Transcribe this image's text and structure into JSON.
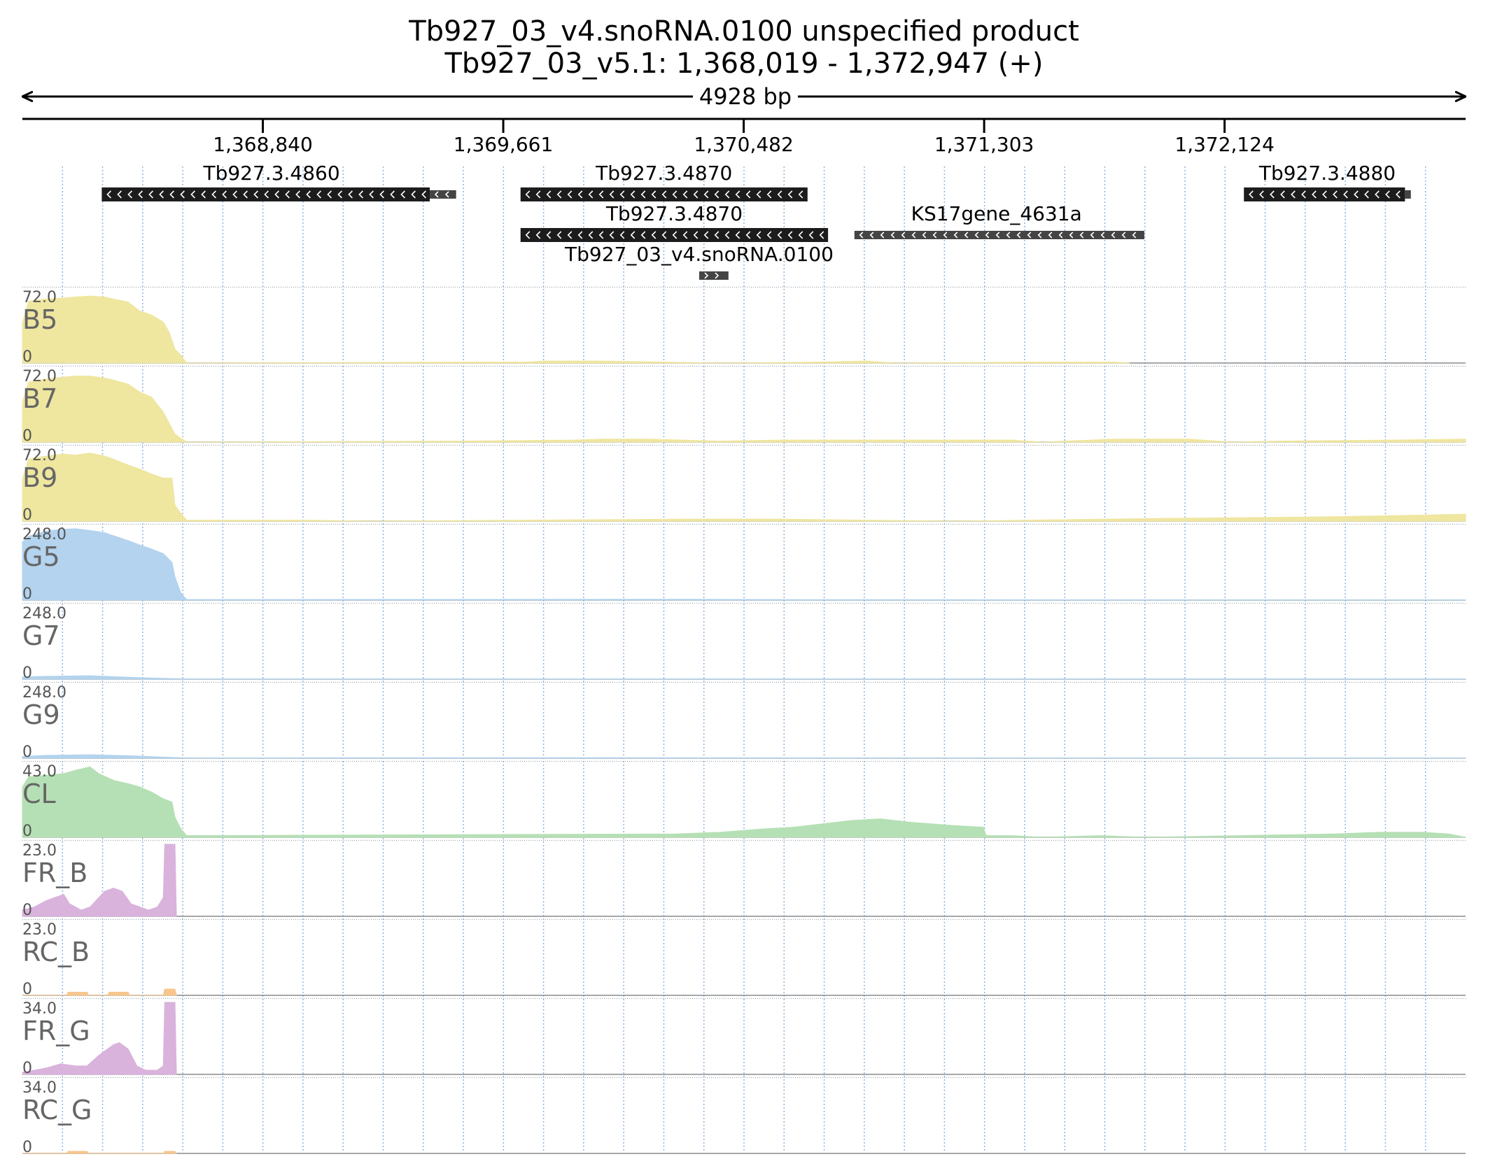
{
  "header": {
    "title": "Tb927_03_v4.snoRNA.0100  unspecified product",
    "subtitle": "Tb927_03_v5.1: 1,368,019 - 1,372,947 (+)",
    "span_label": "4928 bp"
  },
  "colors": {
    "yellow": "#efe6a0",
    "blue": "#b3d3ee",
    "green": "#b5e0b5",
    "purple": "#d9b3dc",
    "orange": "#f7c68c",
    "gene": "#1c1c1c",
    "gene_gray": "#444444",
    "grid": "#8fb6dd"
  },
  "chart_data": {
    "type": "area",
    "title": "Tb927_03_v4.snoRNA.0100  unspecified product",
    "region": {
      "chrom": "Tb927_03_v5.1",
      "start": 1368019,
      "end": 1372947,
      "strand": "+"
    },
    "x_ticks": [
      {
        "pos": 1368840,
        "label": "1,368,840"
      },
      {
        "pos": 1369661,
        "label": "1,369,661"
      },
      {
        "pos": 1370482,
        "label": "1,370,482"
      },
      {
        "pos": 1371303,
        "label": "1,371,303"
      },
      {
        "pos": 1372124,
        "label": "1,372,124"
      }
    ],
    "genes": [
      {
        "name": "Tb927.3.4860",
        "start": 1368290,
        "end": 1369500,
        "strand": "-",
        "row": 0,
        "color": "black",
        "label_pos": 1368870,
        "segments": [
          [
            1368290,
            1369410,
            "thick"
          ],
          [
            1369410,
            1369500,
            "thin"
          ]
        ]
      },
      {
        "name": "Tb927.3.4870",
        "start": 1369720,
        "end": 1370700,
        "strand": "-",
        "row": 0,
        "color": "black",
        "label_pos": 1370210,
        "segments": [
          [
            1369720,
            1370700,
            "thick"
          ]
        ]
      },
      {
        "name": "Tb927.3.4880",
        "start": 1372190,
        "end": 1372760,
        "strand": "-",
        "row": 0,
        "color": "black",
        "label_pos": 1372475,
        "segments": [
          [
            1372190,
            1372740,
            "thick"
          ],
          [
            1372740,
            1372760,
            "thin"
          ]
        ]
      },
      {
        "name": "Tb927.3.4870",
        "start": 1369720,
        "end": 1370770,
        "strand": "-",
        "row": 1,
        "color": "black",
        "label_pos": 1370245,
        "segments": [
          [
            1369720,
            1370770,
            "thick"
          ]
        ]
      },
      {
        "name": "KS17gene_4631a",
        "start": 1370860,
        "end": 1371850,
        "strand": "-",
        "row": 1,
        "color": "gray",
        "label_pos": 1371345,
        "segments": [
          [
            1370860,
            1371850,
            "thin"
          ]
        ]
      },
      {
        "name": "Tb927_03_v4.snoRNA.0100",
        "start": 1370330,
        "end": 1370430,
        "strand": "+",
        "row": 2,
        "color": "gray",
        "label_pos": 1370330,
        "segments": [
          [
            1370330,
            1370430,
            "thin"
          ]
        ]
      }
    ],
    "tracks": [
      {
        "name": "B5",
        "max": 72.0,
        "max_label": "72.0",
        "min_label": "0",
        "color": "yellow",
        "points": [
          [
            1368019,
            40
          ],
          [
            1368040,
            62
          ],
          [
            1368100,
            64
          ],
          [
            1368160,
            65
          ],
          [
            1368200,
            66
          ],
          [
            1368250,
            67
          ],
          [
            1368300,
            66
          ],
          [
            1368330,
            64
          ],
          [
            1368380,
            61
          ],
          [
            1368420,
            52
          ],
          [
            1368460,
            48
          ],
          [
            1368500,
            41
          ],
          [
            1368520,
            31
          ],
          [
            1368540,
            14
          ],
          [
            1368560,
            8
          ],
          [
            1368580,
            0
          ],
          [
            1369570,
            1
          ],
          [
            1369740,
            1
          ],
          [
            1369800,
            2
          ],
          [
            1370000,
            2
          ],
          [
            1370400,
            0
          ],
          [
            1370740,
            1
          ],
          [
            1370900,
            2
          ],
          [
            1371000,
            0
          ],
          [
            1371450,
            1
          ],
          [
            1371750,
            1
          ],
          [
            1371800,
            0
          ]
        ]
      },
      {
        "name": "B7",
        "max": 72.0,
        "max_label": "72.0",
        "min_label": "0",
        "color": "yellow",
        "points": [
          [
            1368019,
            40
          ],
          [
            1368040,
            60
          ],
          [
            1368100,
            63
          ],
          [
            1368160,
            65
          ],
          [
            1368200,
            66
          ],
          [
            1368250,
            66
          ],
          [
            1368300,
            64
          ],
          [
            1368330,
            62
          ],
          [
            1368380,
            58
          ],
          [
            1368420,
            50
          ],
          [
            1368460,
            45
          ],
          [
            1368500,
            30
          ],
          [
            1368540,
            8
          ],
          [
            1368560,
            4
          ],
          [
            1368580,
            0
          ],
          [
            1369500,
            1
          ],
          [
            1369900,
            2
          ],
          [
            1370000,
            3
          ],
          [
            1370150,
            3
          ],
          [
            1370400,
            1
          ],
          [
            1370600,
            2
          ],
          [
            1371000,
            2
          ],
          [
            1371400,
            2
          ],
          [
            1371500,
            0
          ],
          [
            1371750,
            3
          ],
          [
            1372000,
            3
          ],
          [
            1372150,
            0
          ],
          [
            1372300,
            1
          ],
          [
            1372700,
            2
          ],
          [
            1372947,
            3
          ]
        ]
      },
      {
        "name": "B9",
        "max": 72.0,
        "max_label": "72.0",
        "min_label": "0",
        "color": "yellow",
        "points": [
          [
            1368019,
            42
          ],
          [
            1368040,
            62
          ],
          [
            1368100,
            65
          ],
          [
            1368160,
            67
          ],
          [
            1368200,
            66
          ],
          [
            1368250,
            68
          ],
          [
            1368300,
            65
          ],
          [
            1368330,
            62
          ],
          [
            1368380,
            56
          ],
          [
            1368420,
            52
          ],
          [
            1368460,
            47
          ],
          [
            1368500,
            43
          ],
          [
            1368530,
            43
          ],
          [
            1368540,
            16
          ],
          [
            1368560,
            8
          ],
          [
            1368580,
            1
          ],
          [
            1369000,
            1
          ],
          [
            1369200,
            0
          ],
          [
            1370300,
            2
          ],
          [
            1370600,
            2
          ],
          [
            1371200,
            0
          ],
          [
            1372000,
            3
          ],
          [
            1372400,
            4
          ],
          [
            1372800,
            6
          ],
          [
            1372947,
            7
          ]
        ]
      },
      {
        "name": "G5",
        "max": 248.0,
        "max_label": "248.0",
        "min_label": "0",
        "color": "blue",
        "points": [
          [
            1368019,
            200
          ],
          [
            1368040,
            220
          ],
          [
            1368100,
            238
          ],
          [
            1368160,
            244
          ],
          [
            1368200,
            246
          ],
          [
            1368250,
            240
          ],
          [
            1368300,
            232
          ],
          [
            1368330,
            222
          ],
          [
            1368380,
            205
          ],
          [
            1368420,
            190
          ],
          [
            1368460,
            176
          ],
          [
            1368500,
            160
          ],
          [
            1368530,
            130
          ],
          [
            1368540,
            80
          ],
          [
            1368560,
            25
          ],
          [
            1368580,
            2
          ],
          [
            1370300,
            3
          ],
          [
            1370600,
            2
          ],
          [
            1372000,
            1
          ],
          [
            1372947,
            1
          ]
        ]
      },
      {
        "name": "G7",
        "max": 248.0,
        "max_label": "248.0",
        "min_label": "0",
        "color": "blue",
        "points": [
          [
            1368019,
            8
          ],
          [
            1368100,
            10
          ],
          [
            1368250,
            12
          ],
          [
            1368400,
            6
          ],
          [
            1368500,
            3
          ],
          [
            1368580,
            1
          ],
          [
            1370000,
            1
          ],
          [
            1371000,
            1
          ],
          [
            1372947,
            1
          ]
        ]
      },
      {
        "name": "G9",
        "max": 248.0,
        "max_label": "248.0",
        "min_label": "0",
        "color": "blue",
        "points": [
          [
            1368019,
            6
          ],
          [
            1368100,
            10
          ],
          [
            1368250,
            12
          ],
          [
            1368400,
            8
          ],
          [
            1368500,
            4
          ],
          [
            1368580,
            1
          ],
          [
            1370000,
            2
          ],
          [
            1371000,
            1
          ],
          [
            1372947,
            1
          ]
        ]
      },
      {
        "name": "CL",
        "max": 43.0,
        "max_label": "43.0",
        "min_label": "0",
        "color": "green",
        "points": [
          [
            1368019,
            30
          ],
          [
            1368040,
            36
          ],
          [
            1368100,
            37
          ],
          [
            1368160,
            38
          ],
          [
            1368200,
            40
          ],
          [
            1368250,
            42
          ],
          [
            1368280,
            38
          ],
          [
            1368330,
            34
          ],
          [
            1368380,
            32
          ],
          [
            1368420,
            30
          ],
          [
            1368460,
            27
          ],
          [
            1368500,
            23
          ],
          [
            1368530,
            21
          ],
          [
            1368540,
            12
          ],
          [
            1368560,
            5
          ],
          [
            1368580,
            1
          ],
          [
            1370250,
            2
          ],
          [
            1370400,
            3
          ],
          [
            1370550,
            5
          ],
          [
            1370650,
            6
          ],
          [
            1370750,
            8
          ],
          [
            1370850,
            10
          ],
          [
            1370950,
            11
          ],
          [
            1371050,
            9
          ],
          [
            1371200,
            7
          ],
          [
            1371300,
            6
          ],
          [
            1371310,
            1
          ],
          [
            1371400,
            1
          ],
          [
            1371500,
            0
          ],
          [
            1371700,
            1
          ],
          [
            1371850,
            0
          ],
          [
            1372500,
            2
          ],
          [
            1372650,
            3
          ],
          [
            1372800,
            3
          ],
          [
            1372890,
            2
          ],
          [
            1372947,
            0
          ]
        ]
      },
      {
        "name": "FR_B",
        "max": 23.0,
        "max_label": "23.0",
        "min_label": "0",
        "color": "purple",
        "points": [
          [
            1368019,
            2
          ],
          [
            1368060,
            3
          ],
          [
            1368100,
            5
          ],
          [
            1368130,
            6
          ],
          [
            1368160,
            7
          ],
          [
            1368180,
            4
          ],
          [
            1368220,
            2
          ],
          [
            1368250,
            3
          ],
          [
            1368280,
            6
          ],
          [
            1368300,
            8
          ],
          [
            1368330,
            9
          ],
          [
            1368360,
            8
          ],
          [
            1368390,
            4
          ],
          [
            1368420,
            3
          ],
          [
            1368450,
            2
          ],
          [
            1368480,
            3
          ],
          [
            1368500,
            6
          ],
          [
            1368505,
            23
          ],
          [
            1368540,
            23
          ],
          [
            1368545,
            0
          ]
        ]
      },
      {
        "name": "RC_B",
        "max": 23.0,
        "max_label": "23.0",
        "min_label": "0",
        "color": "orange",
        "points": [
          [
            1368019,
            0
          ],
          [
            1368170,
            0
          ],
          [
            1368175,
            1
          ],
          [
            1368240,
            1
          ],
          [
            1368245,
            0
          ],
          [
            1368310,
            0
          ],
          [
            1368315,
            1
          ],
          [
            1368380,
            1
          ],
          [
            1368385,
            0
          ],
          [
            1368500,
            0
          ],
          [
            1368505,
            2
          ],
          [
            1368540,
            2
          ],
          [
            1368545,
            0
          ]
        ]
      },
      {
        "name": "FR_G",
        "max": 34.0,
        "max_label": "34.0",
        "min_label": "0",
        "color": "purple",
        "points": [
          [
            1368019,
            1
          ],
          [
            1368060,
            2
          ],
          [
            1368100,
            3
          ],
          [
            1368150,
            5
          ],
          [
            1368200,
            4
          ],
          [
            1368240,
            4
          ],
          [
            1368280,
            9
          ],
          [
            1368310,
            12
          ],
          [
            1368330,
            14
          ],
          [
            1368350,
            15
          ],
          [
            1368380,
            12
          ],
          [
            1368410,
            4
          ],
          [
            1368440,
            2
          ],
          [
            1368480,
            2
          ],
          [
            1368500,
            4
          ],
          [
            1368505,
            34
          ],
          [
            1368540,
            34
          ],
          [
            1368545,
            0
          ]
        ]
      },
      {
        "name": "RC_G",
        "max": 34.0,
        "max_label": "34.0",
        "min_label": "0",
        "color": "orange",
        "points": [
          [
            1368019,
            0
          ],
          [
            1368170,
            0
          ],
          [
            1368175,
            1
          ],
          [
            1368240,
            1
          ],
          [
            1368245,
            0
          ],
          [
            1368500,
            0
          ],
          [
            1368505,
            1
          ],
          [
            1368540,
            1
          ],
          [
            1368545,
            0
          ]
        ]
      }
    ]
  }
}
